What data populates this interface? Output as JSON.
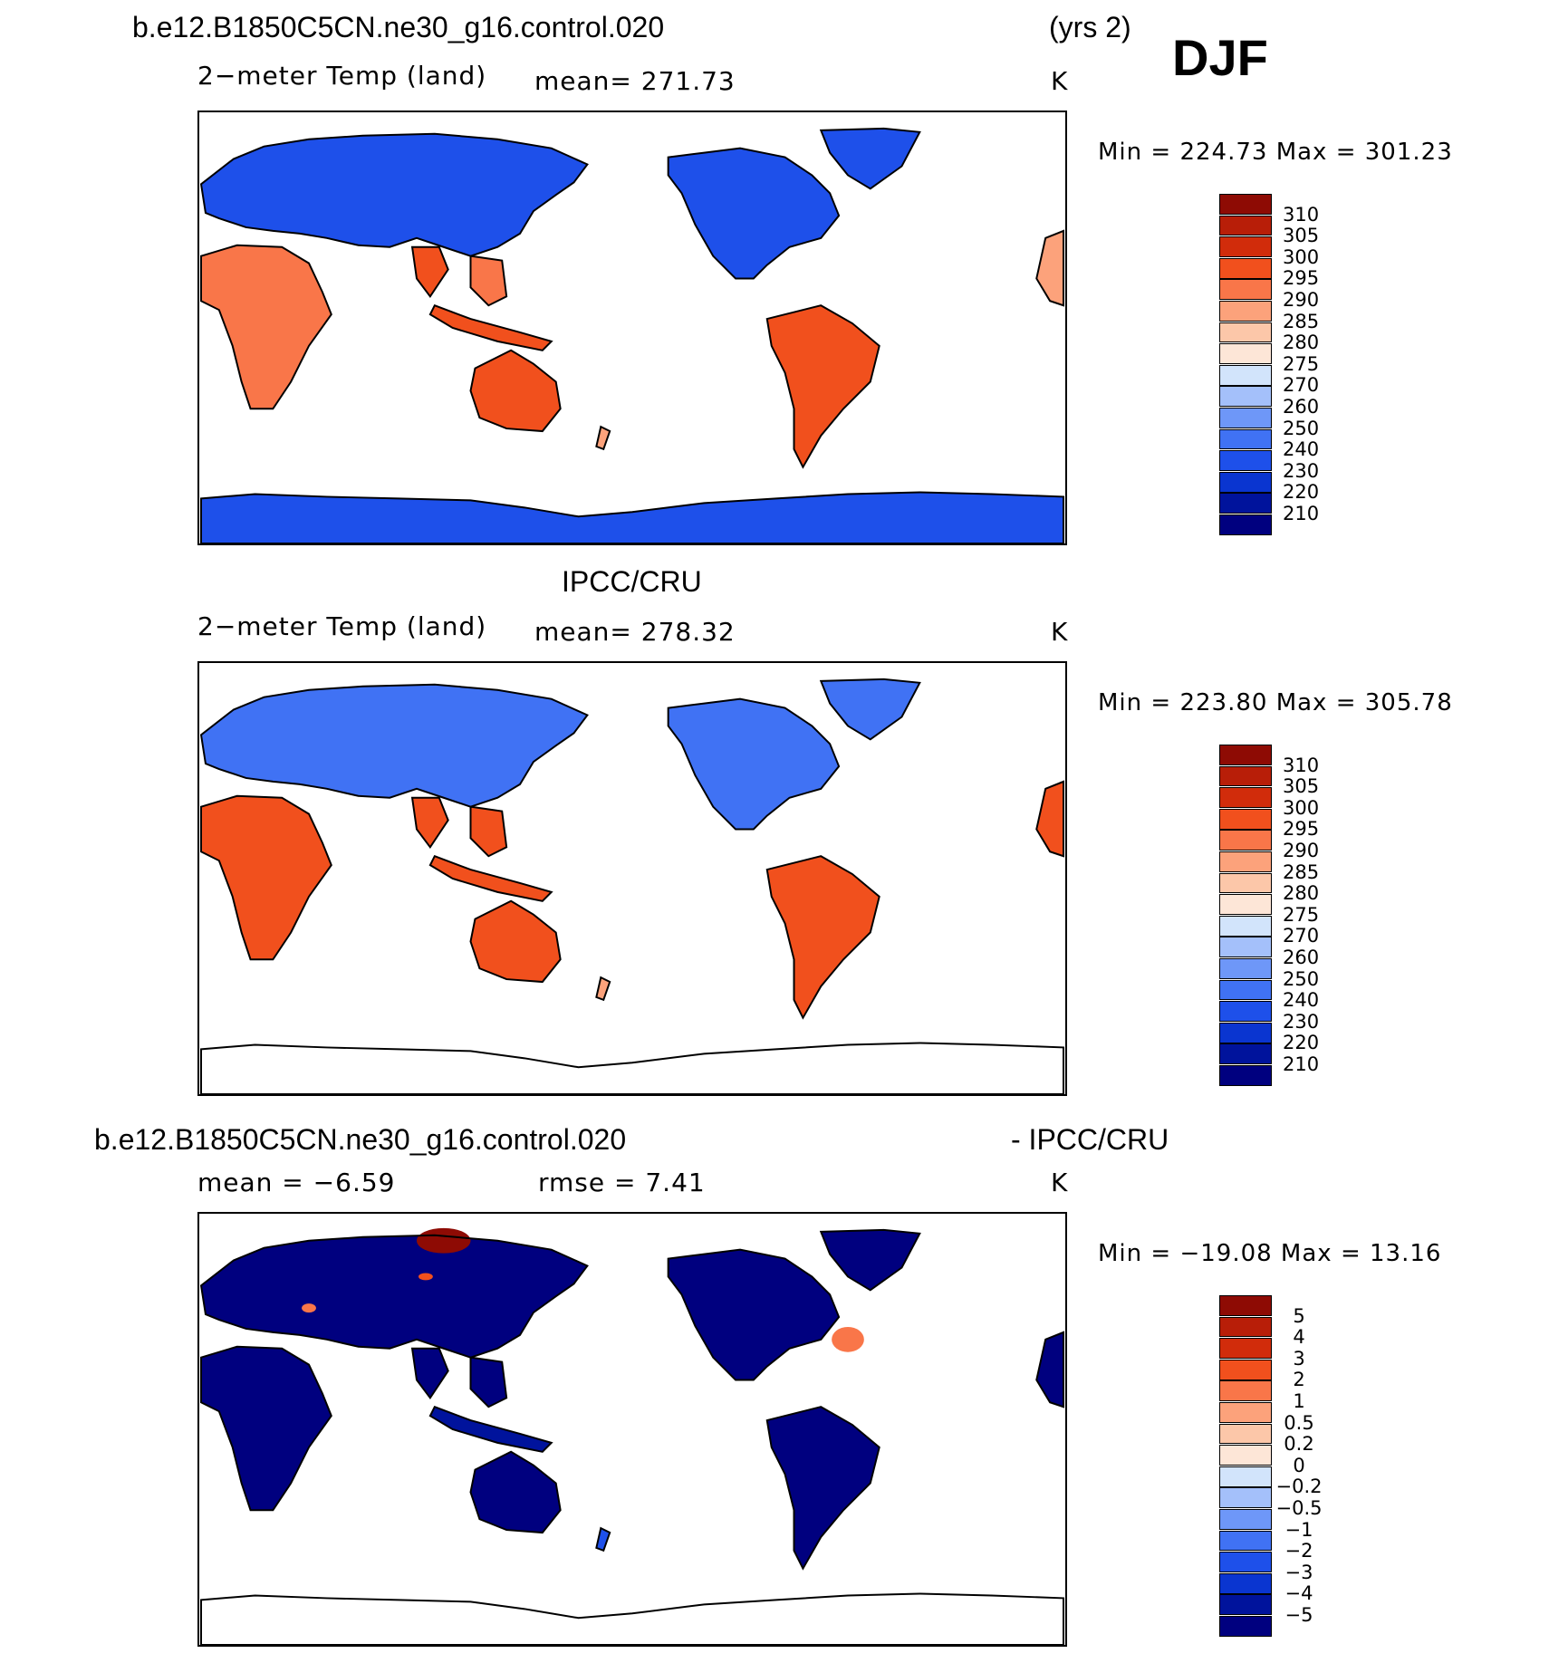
{
  "header": {
    "case_name": "b.e12.B1850C5CN.ne30_g16.control.020",
    "years": "(yrs 2)",
    "season": "DJF"
  },
  "panels": [
    {
      "id": "model",
      "title": "",
      "variable": "2−meter Temp (land)",
      "mean_text": "mean=  271.73",
      "units": "K",
      "minmax": "Min  =  224.73  Max  =  301.23",
      "colorbar": {
        "colors": [
          "#00007f",
          "#00139c",
          "#0a35d0",
          "#1e50ea",
          "#4072f4",
          "#6e97f8",
          "#a4c0fa",
          "#d2e4fb",
          "#fde6d7",
          "#fcc7a9",
          "#fca27b",
          "#f97649",
          "#f1501d",
          "#d12c0b",
          "#b81e08",
          "#8e0b04"
        ],
        "labels": [
          "210",
          "220",
          "230",
          "240",
          "250",
          "260",
          "270",
          "275",
          "280",
          "285",
          "290",
          "295",
          "300",
          "305",
          "310"
        ]
      }
    },
    {
      "id": "obs",
      "title": "IPCC/CRU",
      "variable": "2−meter Temp (land)",
      "mean_text": "mean=  278.32",
      "units": "K",
      "minmax": "Min  =  223.80  Max  =  305.78",
      "colorbar": {
        "colors": [
          "#00007f",
          "#00139c",
          "#0a35d0",
          "#1e50ea",
          "#4072f4",
          "#6e97f8",
          "#a4c0fa",
          "#d2e4fb",
          "#fde6d7",
          "#fcc7a9",
          "#fca27b",
          "#f97649",
          "#f1501d",
          "#d12c0b",
          "#b81e08",
          "#8e0b04"
        ],
        "labels": [
          "210",
          "220",
          "230",
          "240",
          "250",
          "260",
          "270",
          "275",
          "280",
          "285",
          "290",
          "295",
          "300",
          "305",
          "310"
        ]
      }
    },
    {
      "id": "diff",
      "title_left": "b.e12.B1850C5CN.ne30_g16.control.020",
      "title_right": "- IPCC/CRU",
      "mean_text": "mean  =     −6.59",
      "rmse_text": "rmse  =       7.41",
      "units": "K",
      "minmax": "Min  =  −19.08  Max  =     13.16",
      "colorbar": {
        "colors": [
          "#00007f",
          "#00139c",
          "#0a35d0",
          "#1e50ea",
          "#4072f4",
          "#6e97f8",
          "#a4c0fa",
          "#d2e4fb",
          "#fde6d7",
          "#fcc7a9",
          "#fca27b",
          "#f97649",
          "#f1501d",
          "#d12c0b",
          "#b81e08",
          "#8e0b04"
        ],
        "labels": [
          "−5",
          "−4",
          "−3",
          "−2",
          "−1",
          "−0.5",
          "−0.2",
          "0",
          "0.2",
          "0.5",
          "1",
          "2",
          "3",
          "4",
          "5"
        ]
      }
    }
  ]
}
